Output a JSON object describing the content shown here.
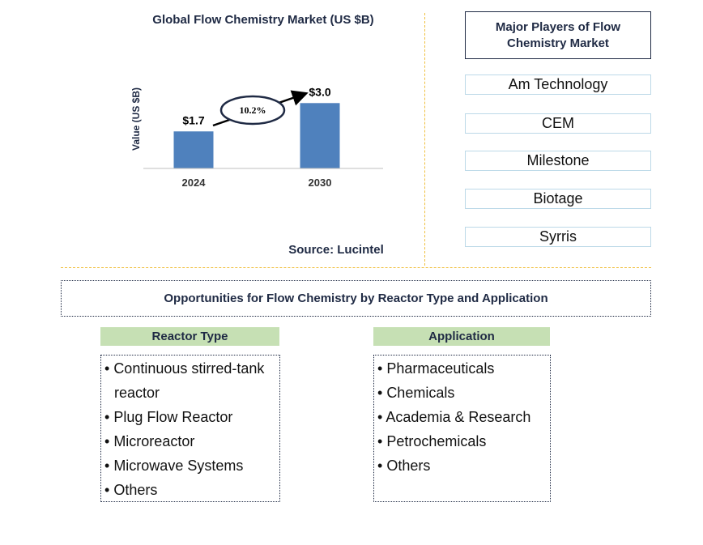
{
  "chart_data": {
    "type": "bar",
    "title": "Global Flow Chemistry Market (US $B)",
    "ylabel": "Value (US $B)",
    "categories": [
      "2024",
      "2030"
    ],
    "values": [
      1.7,
      3.0
    ],
    "value_labels": [
      "$1.7",
      "$3.0"
    ],
    "cagr_label": "10.2%",
    "bar_color": "#4f81bd"
  },
  "source": "Source: Lucintel",
  "players": {
    "header": "Major Players of Flow Chemistry Market",
    "items": [
      "Am Technology",
      "CEM",
      "Milestone",
      "Biotage",
      "Syrris"
    ]
  },
  "opportunities": {
    "title": "Opportunities for Flow Chemistry by Reactor Type and Application",
    "reactor_type": {
      "header": "Reactor Type",
      "items": [
        "Continuous stirred-tank reactor",
        "Plug Flow Reactor",
        "Microreactor",
        "Microwave Systems",
        "Others"
      ]
    },
    "application": {
      "header": "Application",
      "items": [
        "Pharmaceuticals",
        "Chemicals",
        "Academia & Research",
        "Petrochemicals",
        "Others"
      ]
    }
  },
  "colors": {
    "header_fill": "#c6e0b4",
    "divider": "#f0c040",
    "text_dark": "#1f2a44"
  }
}
